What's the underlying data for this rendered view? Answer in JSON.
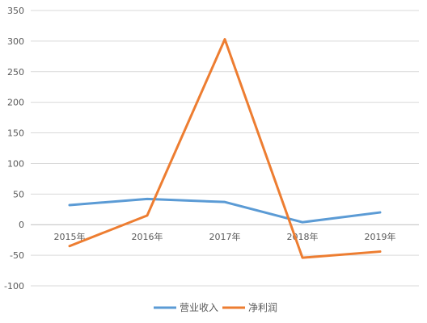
{
  "chart_data": {
    "type": "line",
    "categories": [
      "2015年",
      "2016年",
      "2017年",
      "2018年",
      "2019年"
    ],
    "series": [
      {
        "name": "营业收入",
        "color": "#5B9BD5",
        "values": [
          32,
          42,
          37,
          4,
          20
        ]
      },
      {
        "name": "净利润",
        "color": "#ED7D31",
        "values": [
          -35,
          15,
          303,
          -54,
          -44
        ]
      }
    ],
    "ylim": [
      -100,
      350
    ],
    "yticks": [
      -100,
      -50,
      0,
      50,
      100,
      150,
      200,
      250,
      300,
      350
    ],
    "grid": true,
    "legend_position": "bottom",
    "title": "",
    "xlabel": "",
    "ylabel": ""
  }
}
